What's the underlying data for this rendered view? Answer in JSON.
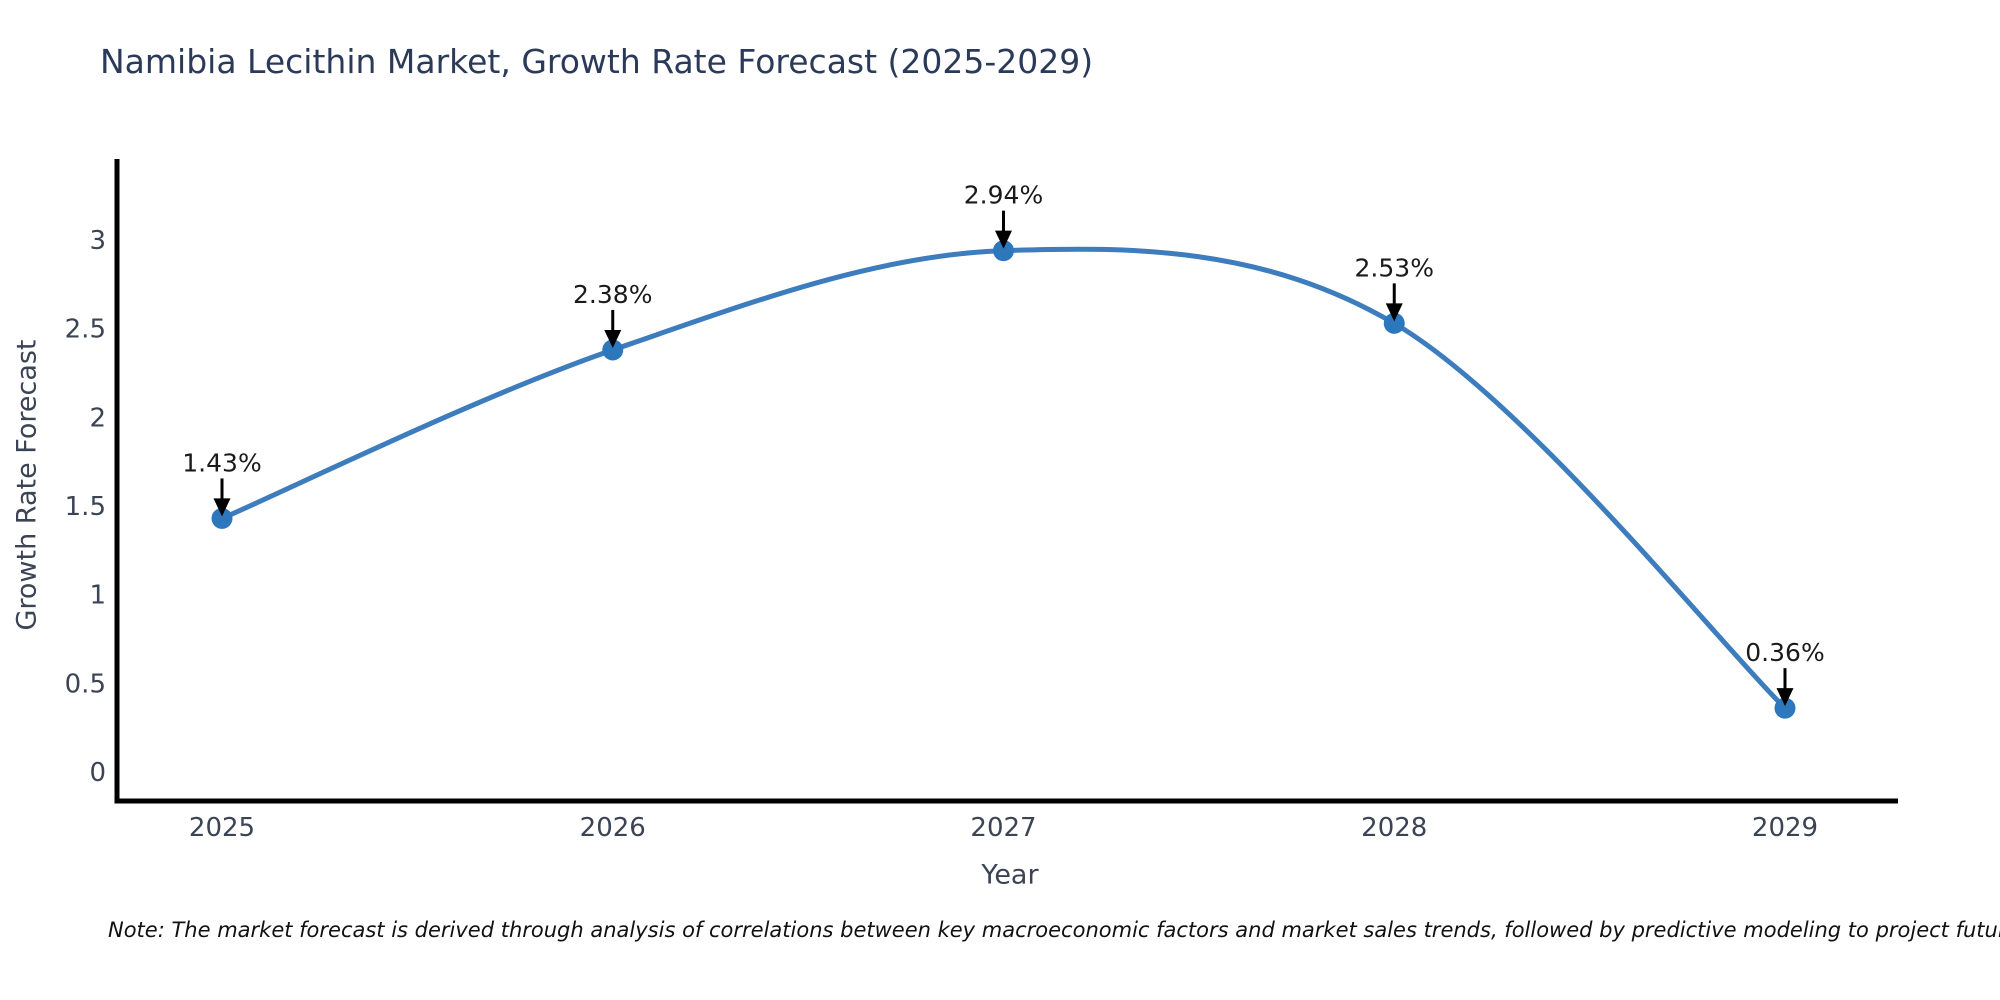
{
  "chart": {
    "note": "Note: The market forecast is derived through analysis of correlations between key macroeconomic factors and market sales trends, followed by predictive modeling to project future sales"
  },
  "chart_data": {
    "type": "line",
    "title": "Namibia Lecithin Market, Growth Rate Forecast (2025-2029)",
    "xlabel": "Year",
    "ylabel": "Growth Rate Forecast",
    "x": [
      2025,
      2026,
      2027,
      2028,
      2029
    ],
    "y": [
      1.43,
      2.38,
      2.94,
      2.53,
      0.36
    ],
    "point_labels": [
      "1.43%",
      "2.38%",
      "2.94%",
      "2.53%",
      "0.36%"
    ],
    "yticks": [
      0,
      0.5,
      1,
      1.5,
      2,
      2.5,
      3
    ],
    "ylim": [
      -0.17,
      3.45
    ],
    "grid": false,
    "legend": null,
    "smooth_curve": true,
    "colors": {
      "line": "#3d7cbd",
      "marker": "#2d77bd",
      "axis": "#000000",
      "tick_text": "#3b4455",
      "title_text": "#2c3a5a",
      "annotation_text": "#1a1a1a",
      "arrow": "#000000"
    }
  }
}
